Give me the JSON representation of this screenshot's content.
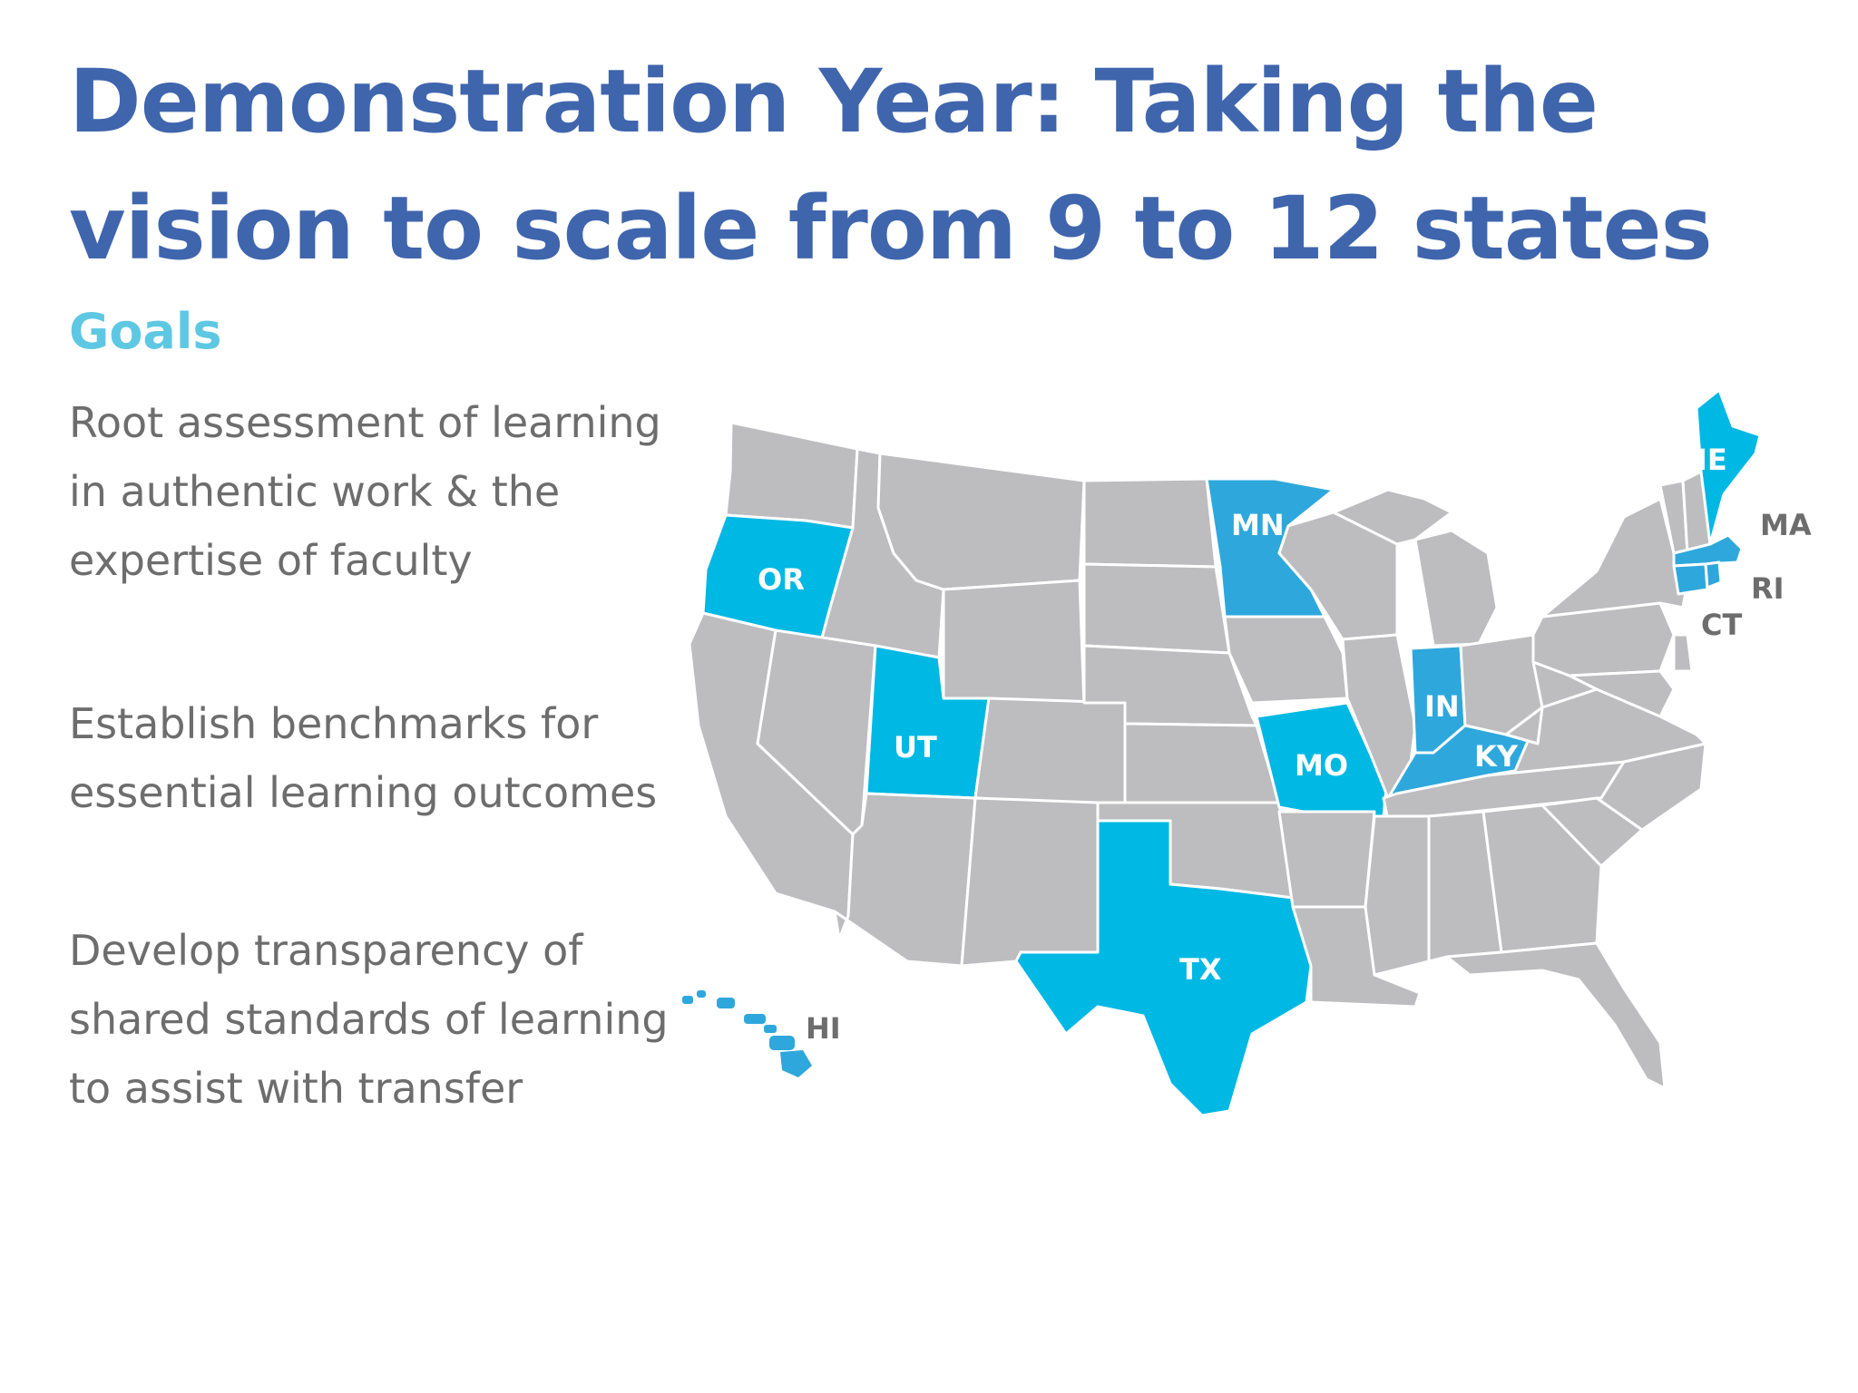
{
  "title": "Demonstration Year: Taking the vision to scale from 9 to 12 states",
  "goals_heading": "Goals",
  "goals": [
    "Root assessment of learning in authentic work & the expertise of faculty",
    "Establish benchmarks for essential learning outcomes",
    "Develop transparency of shared standards of learning to assist with transfer"
  ],
  "colors": {
    "title": "#3f65ad",
    "goals_heading": "#5ec8e2",
    "body_text": "#6d6d6d",
    "highlight": "#00b8e4",
    "state_gray": "#bdbcbe"
  },
  "map": {
    "highlighted_states": [
      "OR",
      "UT",
      "TX",
      "MO",
      "MN",
      "IN",
      "KY",
      "ME",
      "MA",
      "RI",
      "CT",
      "HI"
    ],
    "labels": {
      "OR": "OR",
      "UT": "UT",
      "TX": "TX",
      "MO": "MO",
      "MN": "MN",
      "IN": "IN",
      "KY": "KY",
      "ME": "ME",
      "MA": "MA",
      "RI": "RI",
      "CT": "CT",
      "HI": "HI"
    }
  }
}
